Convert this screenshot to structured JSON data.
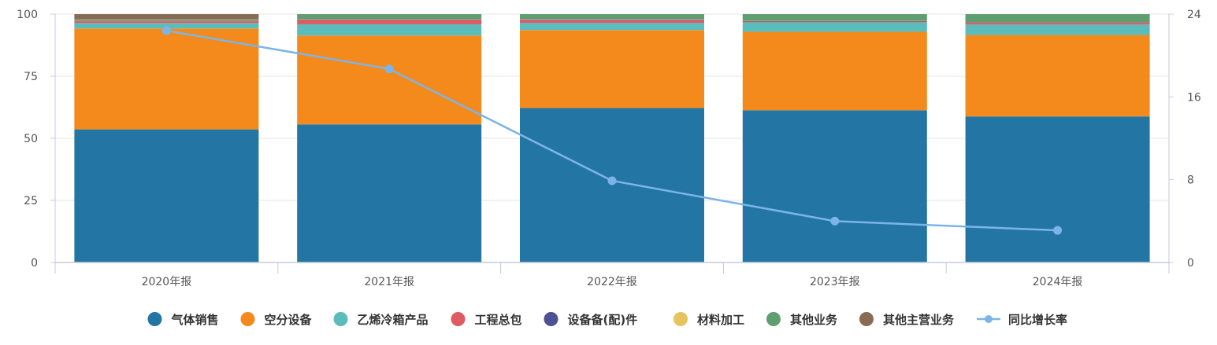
{
  "chart_data": {
    "type": "bar",
    "stacked": true,
    "percent_stacked": true,
    "categories": [
      "2020年报",
      "2021年报",
      "2022年报",
      "2023年报",
      "2024年报"
    ],
    "series": [
      {
        "name": "气体销售",
        "color": "#2376a3",
        "values": [
          53.6,
          55.6,
          62.2,
          61.3,
          58.8
        ]
      },
      {
        "name": "空分设备",
        "color": "#f48a1b",
        "values": [
          40.6,
          35.8,
          31.4,
          31.6,
          32.8
        ]
      },
      {
        "name": "乙烯冷箱产品",
        "color": "#5bbcbc",
        "values": [
          2.2,
          4.5,
          2.9,
          3.8,
          4.2
        ]
      },
      {
        "name": "工程总包",
        "color": "#de5b63",
        "values": [
          0.7,
          1.8,
          1.2,
          0.3,
          0.7
        ]
      },
      {
        "name": "设备备(配)件",
        "color": "#4e5193",
        "values": [
          0.2,
          0.2,
          0.2,
          0.2,
          0.2
        ]
      },
      {
        "name": "材料加工",
        "color": "#e6c35c",
        "values": [
          0.2,
          0.1,
          0.1,
          0.1,
          0.1
        ]
      },
      {
        "name": "其他业务",
        "color": "#5f9e6e",
        "values": [
          0.5,
          2.0,
          2.0,
          2.7,
          3.2
        ]
      },
      {
        "name": "其他主营业务",
        "color": "#8b6a54",
        "values": [
          2.0,
          0.0,
          0.0,
          0.0,
          0.0
        ]
      }
    ],
    "line_series": {
      "name": "同比增长率",
      "color": "#7cb4e8",
      "values": [
        22.4,
        18.7,
        7.9,
        4.0,
        3.1
      ]
    },
    "y_left": {
      "ticks": [
        "0",
        "25",
        "50",
        "75",
        "100"
      ],
      "min": 0,
      "max": 100
    },
    "y_right": {
      "ticks": [
        "0",
        "8",
        "16",
        "24"
      ],
      "min": 0,
      "max": 24
    },
    "grid": true,
    "legend_position": "bottom"
  }
}
